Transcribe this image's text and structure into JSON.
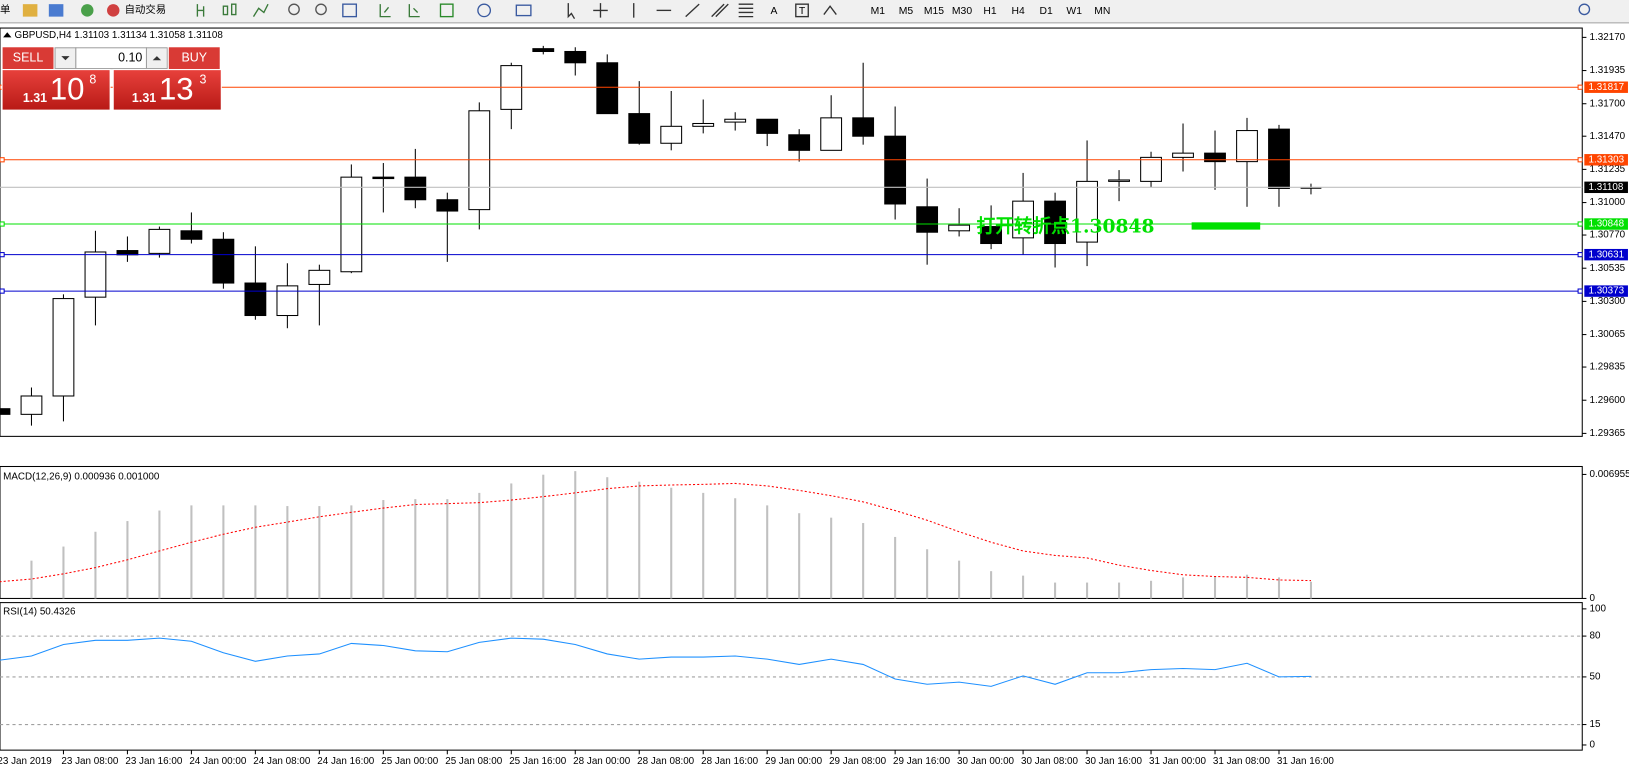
{
  "toolbar": {
    "menu_fragment": "单",
    "autotrade": "自动交易",
    "timeframes": [
      "M1",
      "M5",
      "M15",
      "M30",
      "H1",
      "H4",
      "D1",
      "W1",
      "MN"
    ],
    "tool_a": "A",
    "tool_t": "T"
  },
  "trade_panel": {
    "sell": "SELL",
    "buy": "BUY",
    "lot": "0.10",
    "sell_price": {
      "big": "1.31",
      "pips": "10",
      "point": "8"
    },
    "buy_price": {
      "big": "1.31",
      "pips": "13",
      "point": "3"
    }
  },
  "chart_data": [
    {
      "type": "candlestick",
      "title": "GBPUSD,H4  1.31103 1.31134 1.31058 1.31108",
      "categories": [
        "23 Jan 2019",
        null,
        "23 Jan 08:00",
        null,
        "23 Jan 16:00",
        null,
        "24 Jan 00:00",
        null,
        "24 Jan 08:00",
        null,
        "24 Jan 16:00",
        null,
        "25 Jan 00:00",
        null,
        "25 Jan 08:00",
        null,
        "25 Jan 16:00",
        null,
        "28 Jan 00:00",
        null,
        "28 Jan 08:00",
        null,
        "28 Jan 16:00",
        null,
        "29 Jan 00:00",
        null,
        "29 Jan 08:00",
        null,
        "29 Jan 16:00",
        null,
        "30 Jan 00:00",
        null,
        "30 Jan 08:00",
        null,
        "30 Jan 16:00",
        null,
        "31 Jan 00:00",
        null,
        "31 Jan 08:00",
        null,
        "31 Jan 16:00",
        null
      ],
      "open": [
        1.2954,
        1.295,
        1.2963,
        1.3033,
        1.3066,
        1.3064,
        1.308,
        1.3074,
        1.3043,
        1.302,
        1.3042,
        1.3051,
        1.3118,
        1.3118,
        1.3102,
        1.3095,
        1.3166,
        1.3209,
        1.3207,
        1.3199,
        1.3163,
        1.3142,
        1.3154,
        1.3157,
        1.3159,
        1.3148,
        1.3137,
        1.316,
        1.3147,
        1.3097,
        1.308,
        1.3083,
        1.3075,
        1.3101,
        1.3072,
        1.3115,
        1.3115,
        1.3132,
        1.3135,
        1.3129,
        1.3152,
        1.31103
      ],
      "high": [
        1.2954,
        1.2969,
        1.3035,
        1.308,
        1.3076,
        1.3083,
        1.3093,
        1.3079,
        1.3069,
        1.3057,
        1.3056,
        1.3127,
        1.3128,
        1.3138,
        1.3107,
        1.3171,
        1.3199,
        1.3211,
        1.321,
        1.3205,
        1.3186,
        1.3179,
        1.3173,
        1.3164,
        1.3159,
        1.3152,
        1.3176,
        1.3199,
        1.3168,
        1.3117,
        1.3096,
        1.3098,
        1.3121,
        1.3107,
        1.3144,
        1.3123,
        1.3136,
        1.3156,
        1.3151,
        1.316,
        1.3155,
        1.31134
      ],
      "low": [
        1.2949,
        1.2942,
        1.2945,
        1.3013,
        1.3058,
        1.3061,
        1.3071,
        1.3039,
        1.3017,
        1.3011,
        1.3013,
        1.305,
        1.3093,
        1.3096,
        1.3058,
        1.3081,
        1.3152,
        1.3205,
        1.319,
        1.3163,
        1.3141,
        1.3137,
        1.3149,
        1.3151,
        1.314,
        1.3129,
        1.3137,
        1.3141,
        1.3088,
        1.3056,
        1.3076,
        1.3067,
        1.3063,
        1.3054,
        1.3055,
        1.3101,
        1.3111,
        1.3122,
        1.3109,
        1.3097,
        1.3097,
        1.31058
      ],
      "close": [
        1.295,
        1.2963,
        1.3032,
        1.3065,
        1.3063,
        1.3081,
        1.3074,
        1.3043,
        1.302,
        1.3041,
        1.3052,
        1.3118,
        1.3117,
        1.3102,
        1.3094,
        1.3165,
        1.3197,
        1.3207,
        1.3199,
        1.3163,
        1.3142,
        1.3154,
        1.3156,
        1.3159,
        1.3149,
        1.3137,
        1.316,
        1.3147,
        1.3099,
        1.3079,
        1.3084,
        1.3071,
        1.3101,
        1.3071,
        1.3115,
        1.3116,
        1.3132,
        1.3135,
        1.3129,
        1.3151,
        1.311,
        1.31108
      ],
      "ylim": [
        1.29344,
        1.32236
      ],
      "yticks": [
        {
          "value": 1.3217,
          "label": "1.32170"
        },
        1.31935,
        {
          "value": 1.317,
          "label": "1.31700"
        },
        {
          "value": 1.3147,
          "label": "1.31470"
        },
        1.31235,
        {
          "value": 1.31,
          "label": "1.31000"
        },
        {
          "value": 1.3077,
          "label": "1.30770"
        },
        1.30535,
        {
          "value": 1.303,
          "label": "1.30300"
        },
        1.30065,
        1.29835,
        {
          "value": 1.296,
          "label": "1.29600"
        },
        1.29365
      ],
      "levels": [
        {
          "value": 1.31817,
          "color": "#ff4500"
        },
        {
          "value": 1.31303,
          "color": "#ff4500"
        },
        {
          "value": 1.31108,
          "color": "#c0c0c0",
          "label_fill": "#000000"
        },
        {
          "value": 1.30848,
          "color": "#00e000"
        },
        {
          "value": 1.30631,
          "color": "#0000cd"
        },
        {
          "value": 1.30373,
          "color": "#0000cd"
        }
      ],
      "annotation": {
        "text": "打开转折点1.30848",
        "color": "#00e000"
      }
    },
    {
      "type": "macd",
      "title": "MACD(12,26,9) 0.000936 0.001000",
      "series": [
        {
          "color": "#c0c0c0",
          "values": [
            null,
            0.00212,
            0.00291,
            0.00374,
            0.00434,
            0.00493,
            0.00522,
            0.00522,
            0.00522,
            0.00518,
            0.00518,
            0.00522,
            0.00552,
            0.00557,
            0.00557,
            0.00592,
            0.00645,
            0.00694,
            0.00714,
            0.0068,
            0.00655,
            0.00621,
            0.00592,
            0.00562,
            0.00522,
            0.00478,
            0.00453,
            0.00423,
            0.00345,
            0.00276,
            0.00212,
            0.00153,
            0.00128,
            0.00089,
            0.00089,
            0.00089,
            0.00099,
            0.00118,
            0.00123,
            0.00133,
            0.00118,
            0.000936
          ]
        },
        {
          "color": "#ff0000",
          "values": [
            0.00094,
            0.00109,
            0.00138,
            0.00173,
            0.00217,
            0.00266,
            0.00315,
            0.0036,
            0.00399,
            0.00428,
            0.00458,
            0.00483,
            0.00507,
            0.00527,
            0.00532,
            0.00537,
            0.00552,
            0.00571,
            0.00592,
            0.00616,
            0.00631,
            0.00636,
            0.0064,
            0.00645,
            0.00631,
            0.00606,
            0.00576,
            0.00542,
            0.00493,
            0.00439,
            0.00374,
            0.00315,
            0.00266,
            0.00241,
            0.00227,
            0.00187,
            0.00157,
            0.00133,
            0.00123,
            0.00118,
            0.00104,
            0.001
          ]
        }
      ],
      "ylim": [
        0,
        0.0074
      ],
      "yticks": [
        0.006955,
        0
      ]
    },
    {
      "type": "line",
      "title": "RSI(14) 50.4326",
      "series": [
        {
          "color": "#1e90ff",
          "values": [
            62.3,
            65.4,
            73.8,
            76.9,
            76.9,
            78.5,
            76.2,
            67.7,
            61.5,
            65.4,
            66.9,
            74.6,
            73.1,
            69.2,
            68.5,
            75.4,
            78.5,
            77.7,
            73.8,
            66.9,
            63.1,
            64.6,
            64.6,
            65.4,
            63.1,
            59.2,
            63.1,
            59.2,
            48.5,
            44.6,
            46.2,
            43.1,
            50.8,
            44.6,
            53.1,
            53.1,
            55.4,
            56.2,
            55.4,
            60.0,
            50.0,
            50.4326
          ]
        }
      ],
      "ylim": [
        -3.8,
        104.6
      ],
      "yticks": [
        100,
        80,
        50,
        15,
        0
      ],
      "levels": [
        80,
        50,
        15
      ]
    }
  ]
}
